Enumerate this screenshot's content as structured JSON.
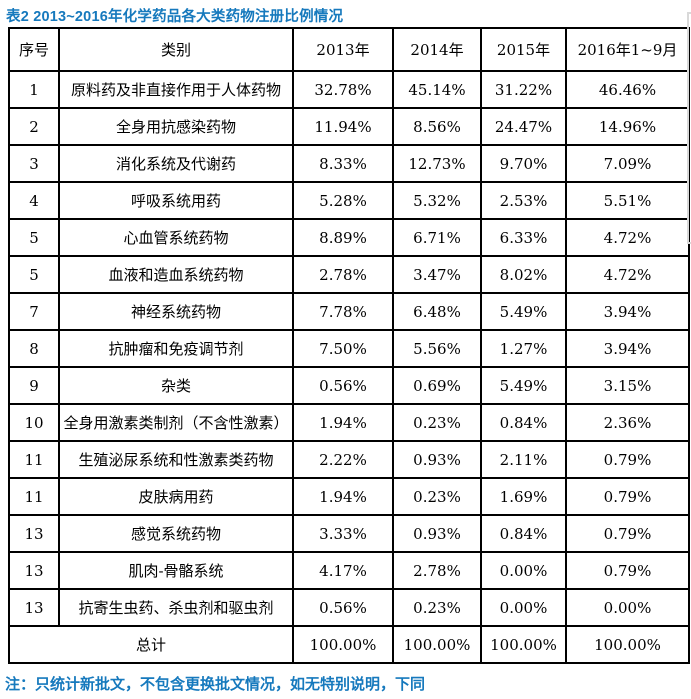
{
  "theme": {
    "accent_blue": "#1679bd",
    "border_black": "#000000",
    "frame_gray": "#d9d9d9"
  },
  "title": {
    "text": "表2 2013~2016年化学药品各大类药物注册比例情况"
  },
  "table": {
    "columns": [
      "序号",
      "类别",
      "2013年",
      "2014年",
      "2015年",
      "2016年1~9月"
    ],
    "rows": [
      {
        "no": "1",
        "category": "原料药及非直接作用于人体药物",
        "values": [
          "32.78%",
          "45.14%",
          "31.22%",
          "46.46%"
        ]
      },
      {
        "no": "2",
        "category": "全身用抗感染药物",
        "values": [
          "11.94%",
          "8.56%",
          "24.47%",
          "14.96%"
        ]
      },
      {
        "no": "3",
        "category": "消化系统及代谢药",
        "values": [
          "8.33%",
          "12.73%",
          "9.70%",
          "7.09%"
        ]
      },
      {
        "no": "4",
        "category": "呼吸系统用药",
        "values": [
          "5.28%",
          "5.32%",
          "2.53%",
          "5.51%"
        ]
      },
      {
        "no": "5",
        "category": "心血管系统药物",
        "values": [
          "8.89%",
          "6.71%",
          "6.33%",
          "4.72%"
        ]
      },
      {
        "no": "5",
        "category": "血液和造血系统药物",
        "values": [
          "2.78%",
          "3.47%",
          "8.02%",
          "4.72%"
        ]
      },
      {
        "no": "7",
        "category": "神经系统药物",
        "values": [
          "7.78%",
          "6.48%",
          "5.49%",
          "3.94%"
        ]
      },
      {
        "no": "8",
        "category": "抗肿瘤和免疫调节剂",
        "values": [
          "7.50%",
          "5.56%",
          "1.27%",
          "3.94%"
        ]
      },
      {
        "no": "9",
        "category": "杂类",
        "values": [
          "0.56%",
          "0.69%",
          "5.49%",
          "3.15%"
        ]
      },
      {
        "no": "10",
        "category": "全身用激素类制剂（不含性激素）",
        "values": [
          "1.94%",
          "0.23%",
          "0.84%",
          "2.36%"
        ]
      },
      {
        "no": "11",
        "category": "生殖泌尿系统和性激素类药物",
        "values": [
          "2.22%",
          "0.93%",
          "2.11%",
          "0.79%"
        ]
      },
      {
        "no": "11",
        "category": "皮肤病用药",
        "values": [
          "1.94%",
          "0.23%",
          "1.69%",
          "0.79%"
        ]
      },
      {
        "no": "13",
        "category": "感觉系统药物",
        "values": [
          "3.33%",
          "0.93%",
          "0.84%",
          "0.79%"
        ]
      },
      {
        "no": "13",
        "category": "肌肉-骨骼系统",
        "values": [
          "4.17%",
          "2.78%",
          "0.00%",
          "0.79%"
        ]
      },
      {
        "no": "13",
        "category": "抗寄生虫药、杀虫剂和驱虫剂",
        "values": [
          "0.56%",
          "0.23%",
          "0.00%",
          "0.00%"
        ]
      }
    ],
    "total": {
      "label": "总计",
      "values": [
        "100.00%",
        "100.00%",
        "100.00%",
        "100.00%"
      ]
    }
  },
  "note": {
    "text": "注：只统计新批文，不包含更换批文情况，如无特别说明，下同"
  }
}
